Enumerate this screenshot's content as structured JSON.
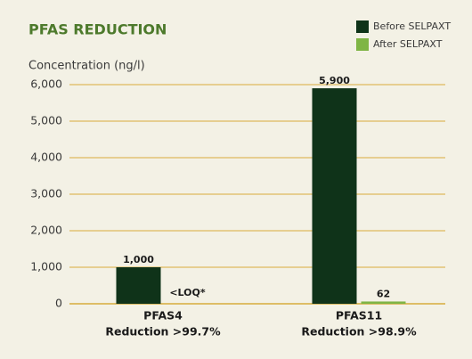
{
  "chart_data": {
    "type": "bar",
    "title": "PFAS REDUCTION",
    "y_label": "Concentration (ng/l)",
    "categories": [
      "PFAS4",
      "PFAS11"
    ],
    "category_notes": [
      "Reduction >99.7%",
      "Reduction >98.9%"
    ],
    "series": [
      {
        "name": "Before SELPAXT",
        "color": "#0f3319",
        "values": [
          1000,
          5900
        ],
        "value_labels": [
          "1,000",
          "5,900"
        ]
      },
      {
        "name": "After SELPAXT",
        "color": "#7fb545",
        "values": [
          null,
          62
        ],
        "value_labels": [
          "<LOQ*",
          "62"
        ]
      }
    ],
    "ylim": [
      0,
      6000
    ],
    "yticks": [
      0,
      {
        "value": 1000,
        "label": "1,000"
      },
      {
        "value": 2000,
        "label": "2,000"
      },
      {
        "value": 3000,
        "label": "3,000"
      },
      {
        "value": 4000,
        "label": "4,000"
      },
      {
        "value": 5000,
        "label": "5,000"
      },
      {
        "value": 6000,
        "label": "6,000"
      }
    ],
    "grid": true,
    "grid_color": "#d8ac3c",
    "legend_position": "top-right"
  }
}
